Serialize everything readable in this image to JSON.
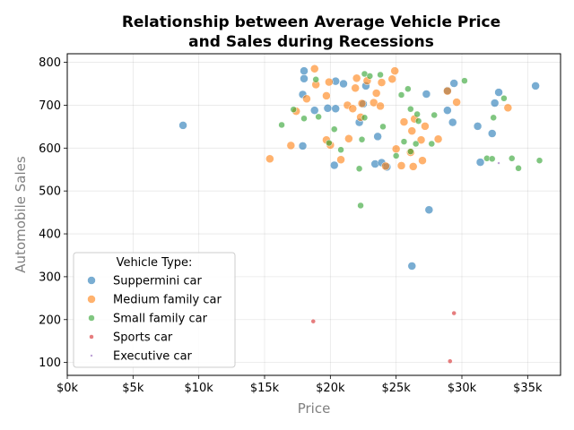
{
  "chart_data": {
    "type": "scatter",
    "title_lines": [
      "Relationship between Average Vehicle Price",
      "and Sales during Recessions"
    ],
    "xlabel": "Price",
    "ylabel": "Automobile Sales",
    "xlim": [
      0,
      37500
    ],
    "ylim": [
      70,
      820
    ],
    "x_ticks": [
      0,
      5000,
      10000,
      15000,
      20000,
      25000,
      30000,
      35000
    ],
    "x_tick_labels": [
      "$0k",
      "$5k",
      "$10k",
      "$15k",
      "$20k",
      "$25k",
      "$30k",
      "$35k"
    ],
    "y_ticks": [
      100,
      200,
      300,
      400,
      500,
      600,
      700,
      800
    ],
    "y_tick_labels": [
      "100",
      "200",
      "300",
      "400",
      "500",
      "600",
      "700",
      "800"
    ],
    "grid": true,
    "legend": {
      "title": "Vehicle Type:",
      "placement": "lower-left",
      "entries": [
        "Suppermini car",
        "Medium family car",
        "Small family car",
        "Sports car",
        "Executive car"
      ]
    },
    "series": [
      {
        "name": "Suppermini car",
        "color": "#1f77b4",
        "size": 9,
        "points": [
          [
            8800,
            653
          ],
          [
            17900,
            605
          ],
          [
            17900,
            725
          ],
          [
            18000,
            762
          ],
          [
            18000,
            780
          ],
          [
            18800,
            688
          ],
          [
            19800,
            693
          ],
          [
            20300,
            560
          ],
          [
            20400,
            692
          ],
          [
            20400,
            756
          ],
          [
            21000,
            750
          ],
          [
            22200,
            660
          ],
          [
            22500,
            703
          ],
          [
            22700,
            745
          ],
          [
            23400,
            563
          ],
          [
            23600,
            627
          ],
          [
            23900,
            566
          ],
          [
            24300,
            556
          ],
          [
            26200,
            325
          ],
          [
            27300,
            726
          ],
          [
            27500,
            456
          ],
          [
            28900,
            734
          ],
          [
            28900,
            688
          ],
          [
            29300,
            660
          ],
          [
            29400,
            751
          ],
          [
            31200,
            651
          ],
          [
            31400,
            567
          ],
          [
            32300,
            634
          ],
          [
            32500,
            705
          ],
          [
            32800,
            730
          ],
          [
            35600,
            745
          ]
        ]
      },
      {
        "name": "Medium family car",
        "color": "#ff7f0e",
        "size": 9,
        "points": [
          [
            15400,
            575
          ],
          [
            17000,
            606
          ],
          [
            17400,
            686
          ],
          [
            18200,
            715
          ],
          [
            18800,
            785
          ],
          [
            18900,
            748
          ],
          [
            19700,
            619
          ],
          [
            19700,
            722
          ],
          [
            19900,
            754
          ],
          [
            20000,
            607
          ],
          [
            20800,
            573
          ],
          [
            21300,
            700
          ],
          [
            21400,
            622
          ],
          [
            21700,
            692
          ],
          [
            21900,
            740
          ],
          [
            22000,
            763
          ],
          [
            22300,
            672
          ],
          [
            22400,
            704
          ],
          [
            22800,
            757
          ],
          [
            23300,
            706
          ],
          [
            23500,
            728
          ],
          [
            23800,
            698
          ],
          [
            23900,
            753
          ],
          [
            24200,
            558
          ],
          [
            24700,
            761
          ],
          [
            24900,
            780
          ],
          [
            25000,
            598
          ],
          [
            25400,
            559
          ],
          [
            25600,
            661
          ],
          [
            26100,
            590
          ],
          [
            26200,
            640
          ],
          [
            26300,
            557
          ],
          [
            26400,
            668
          ],
          [
            26900,
            619
          ],
          [
            27000,
            571
          ],
          [
            27200,
            651
          ],
          [
            28200,
            621
          ],
          [
            28900,
            733
          ],
          [
            29600,
            707
          ],
          [
            33500,
            694
          ]
        ]
      },
      {
        "name": "Small family car",
        "color": "#2ca02c",
        "size": 7,
        "points": [
          [
            16300,
            654
          ],
          [
            17200,
            690
          ],
          [
            18000,
            669
          ],
          [
            18900,
            760
          ],
          [
            19100,
            673
          ],
          [
            19900,
            612
          ],
          [
            20300,
            644
          ],
          [
            20800,
            596
          ],
          [
            22200,
            552
          ],
          [
            22300,
            466
          ],
          [
            22400,
            620
          ],
          [
            22600,
            671
          ],
          [
            22600,
            773
          ],
          [
            23000,
            768
          ],
          [
            23800,
            771
          ],
          [
            24000,
            650
          ],
          [
            25000,
            582
          ],
          [
            25400,
            724
          ],
          [
            25600,
            615
          ],
          [
            25900,
            738
          ],
          [
            26100,
            592
          ],
          [
            26100,
            691
          ],
          [
            26500,
            610
          ],
          [
            26600,
            679
          ],
          [
            26700,
            663
          ],
          [
            27700,
            610
          ],
          [
            27900,
            677
          ],
          [
            30200,
            757
          ],
          [
            31900,
            576
          ],
          [
            32300,
            575
          ],
          [
            32400,
            671
          ],
          [
            33200,
            716
          ],
          [
            33800,
            576
          ],
          [
            34300,
            553
          ],
          [
            35900,
            571
          ]
        ]
      },
      {
        "name": "Sports car",
        "color": "#d62728",
        "size": 5,
        "points": [
          [
            18700,
            196
          ],
          [
            29100,
            103
          ],
          [
            29400,
            215
          ]
        ]
      },
      {
        "name": "Executive car",
        "color": "#9467bd",
        "size": 3,
        "points": [
          [
            32800,
            565
          ]
        ]
      }
    ]
  }
}
